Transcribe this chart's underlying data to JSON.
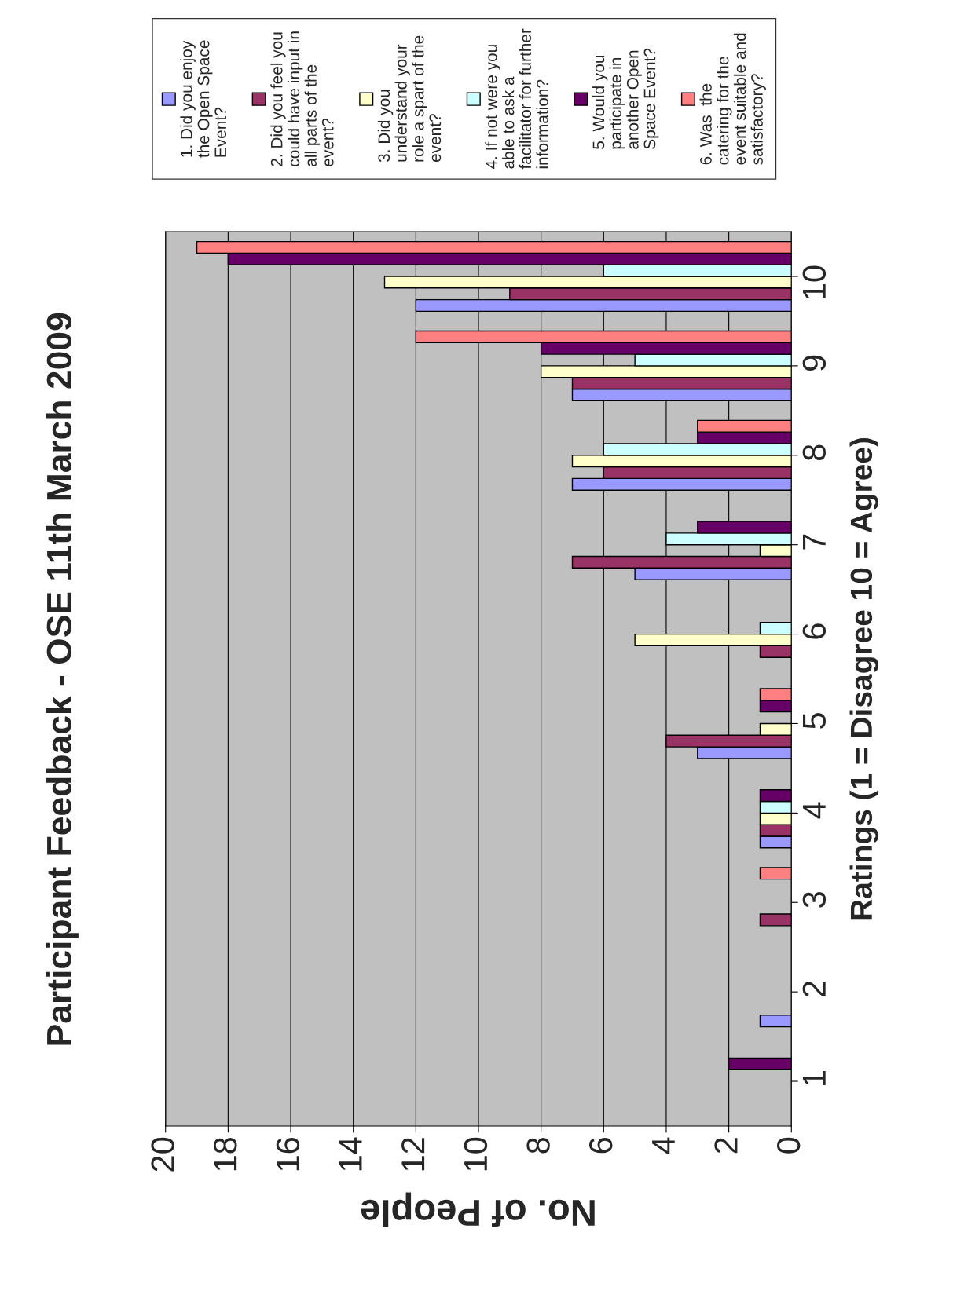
{
  "chart_data": {
    "type": "bar",
    "orientation": "horizontal",
    "title": "Participant Feedback - OSE 11th March 2009",
    "xlabel": "No. of People",
    "ylabel": "Ratings (1 = Disagree 10 = Agree)",
    "categories": [
      "10",
      "9",
      "8",
      "7",
      "6",
      "5",
      "4",
      "3",
      "2",
      "1"
    ],
    "series": [
      {
        "name": "1. Did you enjoy\nthe Open Space\nEvent?",
        "color": "#9999ff",
        "values": [
          12,
          7,
          7,
          5,
          null,
          3,
          1,
          null,
          1,
          null
        ]
      },
      {
        "name": "2. Did you feel you\ncould have input in\nall parts of the\nevent?",
        "color": "#993366",
        "values": [
          9,
          7,
          6,
          7,
          1,
          4,
          1,
          1,
          null,
          null
        ]
      },
      {
        "name": "3. Did you\nunderstand your\nrole a spart of the\nevent?",
        "color": "#ffffcc",
        "values": [
          13,
          8,
          7,
          1,
          5,
          1,
          1,
          null,
          null,
          null
        ]
      },
      {
        "name": "4. If not were you\nable to ask a\nfacilitator for further\ninformation?",
        "color": "#ccffff",
        "values": [
          6,
          5,
          6,
          4,
          1,
          null,
          1,
          null,
          null,
          null
        ]
      },
      {
        "name": "5. Would you\nparticipate in\nanother Open\nSpace Event?",
        "color": "#660066",
        "values": [
          18,
          8,
          3,
          3,
          null,
          1,
          1,
          null,
          null,
          2
        ]
      },
      {
        "name": "6. Was  the\ncatering for the\nevent suitable and\nsatisfactory?",
        "color": "#ff8080",
        "values": [
          19,
          12,
          3,
          null,
          null,
          1,
          null,
          1,
          null,
          null
        ]
      }
    ],
    "xlim": [
      20,
      0
    ],
    "xticks": [
      0,
      2,
      4,
      6,
      8,
      10,
      12,
      14,
      16,
      18,
      20
    ],
    "grid": "x",
    "legend": "top"
  }
}
